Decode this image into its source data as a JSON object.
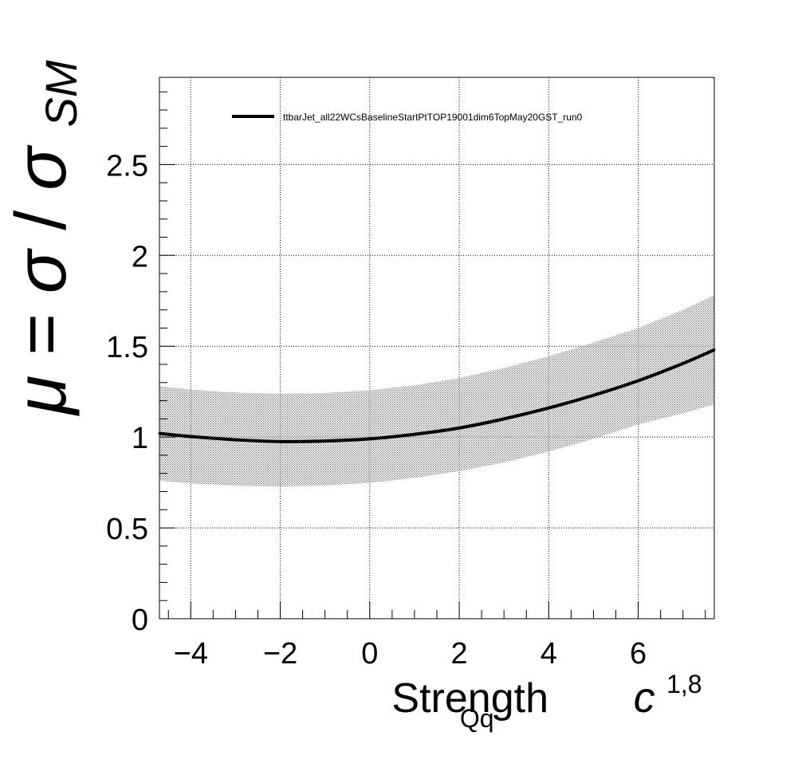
{
  "chart_data": {
    "type": "line",
    "title": "",
    "xlabel": {
      "symbol": "c",
      "superscript": "1,8",
      "subscript": "Qq",
      "suffix": " Strength"
    },
    "ylabel": {
      "mu": "μ",
      "equals": " = ",
      "sigma": "σ",
      "slash": "/",
      "sigma2": "σ",
      "subscript": "SM"
    },
    "xlim": [
      -4.7,
      7.7
    ],
    "ylim": [
      0,
      2.98
    ],
    "x_major_ticks": [
      -4,
      -2,
      0,
      2,
      4,
      6
    ],
    "x_tick_labels": [
      "−4",
      "−2",
      "0",
      "2",
      "4",
      "6"
    ],
    "y_major_ticks": [
      0,
      0.5,
      1,
      1.5,
      2,
      2.5
    ],
    "y_tick_labels": [
      "0",
      "0.5",
      "1",
      "1.5",
      "2",
      "2.5"
    ],
    "grid": true,
    "legend_position": "top",
    "series": [
      {
        "name": "ttbarJet_all22WCsBaselineStartPtTOP19001dim6TopMay20GST_run0",
        "color": "#000000",
        "x": [
          -4.7,
          -4,
          -3,
          -2,
          -1,
          0,
          1,
          2,
          3,
          4,
          5,
          6,
          7,
          7.7
        ],
        "y": [
          1.02,
          1.003,
          0.985,
          0.975,
          0.978,
          0.99,
          1.015,
          1.05,
          1.1,
          1.16,
          1.23,
          1.31,
          1.405,
          1.48
        ],
        "band_lower": [
          0.76,
          0.745,
          0.732,
          0.728,
          0.733,
          0.748,
          0.775,
          0.812,
          0.86,
          0.92,
          0.99,
          1.07,
          1.13,
          1.18
        ],
        "band_upper": [
          1.28,
          1.262,
          1.245,
          1.238,
          1.242,
          1.258,
          1.285,
          1.325,
          1.38,
          1.445,
          1.52,
          1.6,
          1.7,
          1.78
        ]
      }
    ]
  }
}
